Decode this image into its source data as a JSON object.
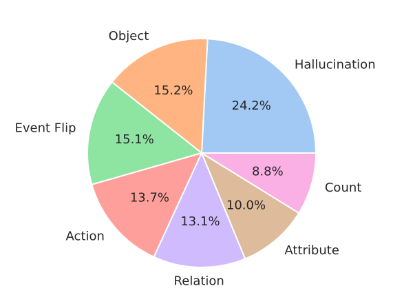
{
  "chart_data": {
    "type": "pie",
    "title": "",
    "start_angle_deg": 0,
    "direction": "counterclockwise",
    "slices": [
      {
        "label": "Hallucination",
        "value": 24.2,
        "pct_label": "24.2%",
        "color": "#a1c9f4"
      },
      {
        "label": "Object",
        "value": 15.2,
        "pct_label": "15.2%",
        "color": "#ffb482"
      },
      {
        "label": "Event Flip",
        "value": 15.1,
        "pct_label": "15.1%",
        "color": "#8de5a1"
      },
      {
        "label": "Action",
        "value": 13.7,
        "pct_label": "13.7%",
        "color": "#ff9f9b"
      },
      {
        "label": "Relation",
        "value": 13.1,
        "pct_label": "13.1%",
        "color": "#d0bbff"
      },
      {
        "label": "Attribute",
        "value": 10.0,
        "pct_label": "10.0%",
        "color": "#debb9b"
      },
      {
        "label": "Count",
        "value": 8.8,
        "pct_label": "8.8%",
        "color": "#fab0e4"
      }
    ]
  }
}
